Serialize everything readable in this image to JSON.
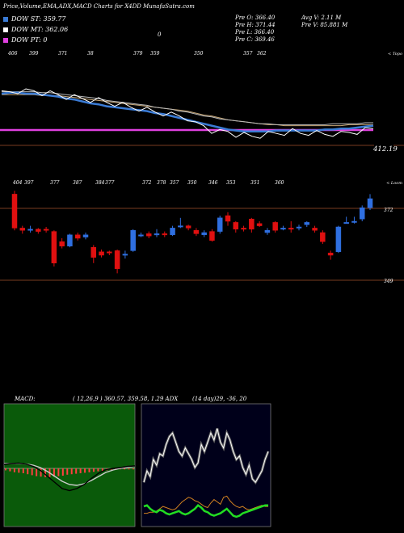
{
  "header": {
    "title": "Price,Volume,EMA,ADX,MACD Charts for X4DD MunafaSutra.com",
    "stats": {
      "open": "Pre O: 366.40",
      "high": "Pre H: 371.44",
      "low": "Pre L: 366.40",
      "close": "Pre C: 369.46",
      "avg_vol": "Avg V: 2.11 M",
      "pre_vol": "Pre V: 85.881 M"
    },
    "small_label": "0"
  },
  "legend": [
    {
      "label": "DOW ST: 359.77",
      "color": "#3a7bd5"
    },
    {
      "label": "DOW MT: 362.06",
      "color": "#ffffff"
    },
    {
      "label": "DOW PT: 0",
      "color": "#e040e0"
    }
  ],
  "ema_panel": {
    "top_labels": [
      "406",
      "399",
      "371",
      "38",
      "379",
      "359",
      "350",
      "357",
      "362"
    ],
    "corner_label": "< Topo",
    "price_label": "412.19",
    "hline_level_label": "412.19"
  },
  "candle_panel": {
    "top_labels": [
      "404",
      "397",
      "377",
      "387",
      "384",
      "377",
      "372",
      "378",
      "357",
      "350",
      "346",
      "353",
      "351",
      "360"
    ],
    "corner_label": "< Loom",
    "upper_level": "372",
    "lower_level": "349"
  },
  "indicators": {
    "macd_label": "MACD:",
    "macd_values": "( 12,26,9 ) 360.57, 359.58, 1.29 ADX",
    "adx_values": "(14 day)29, -36, 20"
  },
  "chart_data": {
    "type": "candlestick",
    "title": "Price,Volume,EMA,ADX,MACD Charts for X4DD MunafaSutra.com",
    "levels": [
      372,
      349
    ],
    "candles": [
      {
        "o": 0.94,
        "c": 0.64,
        "h": 0.97,
        "l": 0.62,
        "up": false
      },
      {
        "o": 0.64,
        "c": 0.62,
        "h": 0.66,
        "l": 0.59,
        "up": false
      },
      {
        "o": 0.63,
        "c": 0.63,
        "h": 0.66,
        "l": 0.6,
        "up": true
      },
      {
        "o": 0.63,
        "c": 0.61,
        "h": 0.64,
        "l": 0.59,
        "up": false
      },
      {
        "o": 0.63,
        "c": 0.62,
        "h": 0.65,
        "l": 0.6,
        "up": false
      },
      {
        "o": 0.61,
        "c": 0.33,
        "h": 0.62,
        "l": 0.3,
        "up": false
      },
      {
        "o": 0.52,
        "c": 0.48,
        "h": 0.55,
        "l": 0.46,
        "up": false
      },
      {
        "o": 0.48,
        "c": 0.58,
        "h": 0.59,
        "l": 0.47,
        "up": true
      },
      {
        "o": 0.58,
        "c": 0.55,
        "h": 0.6,
        "l": 0.53,
        "up": false
      },
      {
        "o": 0.56,
        "c": 0.58,
        "h": 0.6,
        "l": 0.54,
        "up": true
      },
      {
        "o": 0.47,
        "c": 0.38,
        "h": 0.49,
        "l": 0.33,
        "up": false
      },
      {
        "o": 0.43,
        "c": 0.4,
        "h": 0.45,
        "l": 0.38,
        "up": false
      },
      {
        "o": 0.43,
        "c": 0.42,
        "h": 0.44,
        "l": 0.4,
        "up": false
      },
      {
        "o": 0.44,
        "c": 0.28,
        "h": 0.45,
        "l": 0.24,
        "up": false
      },
      {
        "o": 0.4,
        "c": 0.41,
        "h": 0.44,
        "l": 0.37,
        "up": true
      },
      {
        "o": 0.44,
        "c": 0.62,
        "h": 0.63,
        "l": 0.43,
        "up": true
      },
      {
        "o": 0.58,
        "c": 0.58,
        "h": 0.6,
        "l": 0.56,
        "up": true
      },
      {
        "o": 0.59,
        "c": 0.57,
        "h": 0.61,
        "l": 0.55,
        "up": false
      },
      {
        "o": 0.58,
        "c": 0.59,
        "h": 0.63,
        "l": 0.56,
        "up": true
      },
      {
        "o": 0.59,
        "c": 0.58,
        "h": 0.61,
        "l": 0.56,
        "up": false
      },
      {
        "o": 0.58,
        "c": 0.64,
        "h": 0.66,
        "l": 0.57,
        "up": true
      },
      {
        "o": 0.66,
        "c": 0.66,
        "h": 0.73,
        "l": 0.64,
        "up": true
      },
      {
        "o": 0.66,
        "c": 0.64,
        "h": 0.67,
        "l": 0.62,
        "up": false
      },
      {
        "o": 0.62,
        "c": 0.59,
        "h": 0.64,
        "l": 0.57,
        "up": false
      },
      {
        "o": 0.58,
        "c": 0.6,
        "h": 0.62,
        "l": 0.56,
        "up": true
      },
      {
        "o": 0.61,
        "c": 0.53,
        "h": 0.63,
        "l": 0.52,
        "up": false
      },
      {
        "o": 0.61,
        "c": 0.73,
        "h": 0.75,
        "l": 0.59,
        "up": true
      },
      {
        "o": 0.75,
        "c": 0.7,
        "h": 0.78,
        "l": 0.66,
        "up": false
      },
      {
        "o": 0.69,
        "c": 0.63,
        "h": 0.7,
        "l": 0.6,
        "up": false
      },
      {
        "o": 0.64,
        "c": 0.63,
        "h": 0.66,
        "l": 0.61,
        "up": false
      },
      {
        "o": 0.72,
        "c": 0.63,
        "h": 0.73,
        "l": 0.6,
        "up": false
      },
      {
        "o": 0.68,
        "c": 0.66,
        "h": 0.7,
        "l": 0.65,
        "up": false
      },
      {
        "o": 0.6,
        "c": 0.62,
        "h": 0.64,
        "l": 0.58,
        "up": true
      },
      {
        "o": 0.69,
        "c": 0.62,
        "h": 0.7,
        "l": 0.6,
        "up": false
      },
      {
        "o": 0.63,
        "c": 0.64,
        "h": 0.66,
        "l": 0.62,
        "up": true
      },
      {
        "o": 0.64,
        "c": 0.63,
        "h": 0.7,
        "l": 0.6,
        "up": false
      },
      {
        "o": 0.64,
        "c": 0.65,
        "h": 0.67,
        "l": 0.62,
        "up": true
      },
      {
        "o": 0.67,
        "c": 0.69,
        "h": 0.7,
        "l": 0.65,
        "up": true
      },
      {
        "o": 0.64,
        "c": 0.62,
        "h": 0.66,
        "l": 0.6,
        "up": false
      },
      {
        "o": 0.6,
        "c": 0.52,
        "h": 0.62,
        "l": 0.5,
        "up": false
      },
      {
        "o": 0.42,
        "c": 0.4,
        "h": 0.44,
        "l": 0.36,
        "up": false
      },
      {
        "o": 0.43,
        "c": 0.65,
        "h": 0.66,
        "l": 0.42,
        "up": true
      },
      {
        "o": 0.69,
        "c": 0.69,
        "h": 0.74,
        "l": 0.68,
        "up": true
      },
      {
        "o": 0.7,
        "c": 0.7,
        "h": 0.74,
        "l": 0.68,
        "up": true
      },
      {
        "o": 0.72,
        "c": 0.82,
        "h": 0.84,
        "l": 0.7,
        "up": true
      },
      {
        "o": 0.82,
        "c": 0.9,
        "h": 0.94,
        "l": 0.8,
        "up": true
      }
    ],
    "ema_price": [
      0.3,
      0.28,
      0.27,
      0.28,
      0.27,
      0.29,
      0.3,
      0.31,
      0.33,
      0.34,
      0.35,
      0.36,
      0.37,
      0.39,
      0.4,
      0.42,
      0.44,
      0.45,
      0.47,
      0.49,
      0.5,
      0.52,
      0.53,
      0.55,
      0.62,
      0.63,
      0.68,
      0.7,
      0.69,
      0.72,
      0.73,
      0.74,
      0.73,
      0.72,
      0.71,
      0.7,
      0.69,
      0.71,
      0.7,
      0.71,
      0.72,
      0.71,
      0.72,
      0.7,
      0.69,
      0.68,
      0.66
    ],
    "ema_blue": [
      0.3,
      0.29,
      0.29,
      0.3,
      0.3,
      0.31,
      0.32,
      0.33,
      0.35,
      0.36,
      0.38,
      0.4,
      0.41,
      0.43,
      0.44,
      0.45,
      0.46,
      0.47,
      0.48,
      0.5,
      0.51,
      0.53,
      0.55,
      0.57,
      0.59,
      0.61,
      0.63,
      0.65,
      0.67,
      0.68,
      0.69,
      0.69,
      0.69,
      0.69,
      0.68,
      0.68,
      0.68,
      0.68,
      0.68,
      0.68,
      0.67,
      0.67,
      0.66,
      0.66,
      0.65,
      0.64,
      0.63
    ],
    "ema_white": [
      0.28,
      0.28,
      0.28,
      0.28,
      0.28,
      0.29,
      0.29,
      0.3,
      0.31,
      0.32,
      0.33,
      0.34,
      0.35,
      0.37,
      0.38,
      0.39,
      0.4,
      0.41,
      0.42,
      0.44,
      0.45,
      0.46,
      0.48,
      0.49,
      0.51,
      0.53,
      0.54,
      0.56,
      0.57,
      0.58,
      0.59,
      0.6,
      0.61,
      0.61,
      0.62,
      0.62,
      0.62,
      0.62,
      0.62,
      0.62,
      0.62,
      0.61,
      0.61,
      0.61,
      0.61,
      0.6,
      0.6
    ],
    "ema_tan": [
      0.31,
      0.31,
      0.31,
      0.31,
      0.31,
      0.32,
      0.32,
      0.32,
      0.33,
      0.34,
      0.35,
      0.36,
      0.37,
      0.38,
      0.39,
      0.4,
      0.41,
      0.42,
      0.43,
      0.44,
      0.45,
      0.46,
      0.47,
      0.48,
      0.5,
      0.52,
      0.53,
      0.55,
      0.57,
      0.58,
      0.59,
      0.6,
      0.61,
      0.62,
      0.62,
      0.63,
      0.63,
      0.63,
      0.63,
      0.63,
      0.63,
      0.63,
      0.63,
      0.62,
      0.62,
      0.62,
      0.62
    ],
    "macd_line": [
      0.1,
      0.12,
      0.13,
      0.11,
      0.05,
      -0.05,
      -0.2,
      -0.35,
      -0.5,
      -0.55,
      -0.5,
      -0.4,
      -0.25,
      -0.12,
      -0.03,
      0.0,
      0.02,
      0.05,
      0.06
    ],
    "macd_signal": [
      0.12,
      0.12,
      0.12,
      0.11,
      0.08,
      0.02,
      -0.08,
      -0.2,
      -0.32,
      -0.4,
      -0.42,
      -0.38,
      -0.3,
      -0.2,
      -0.1,
      -0.04,
      0.0,
      0.03,
      0.05
    ],
    "macd_hist": [
      0.04,
      0.06,
      0.08,
      0.09,
      0.1,
      0.12,
      0.14,
      0.16,
      0.17,
      0.18,
      0.18,
      0.17,
      0.16,
      0.15,
      0.13,
      0.12,
      0.11,
      0.1,
      0.09,
      0.08,
      0.07,
      0.06,
      0.05,
      0.04,
      0.03,
      0.03,
      0.02,
      0.02,
      0.02,
      0.02
    ],
    "adx_white": [
      0.35,
      0.45,
      0.4,
      0.55,
      0.5,
      0.6,
      0.58,
      0.68,
      0.75,
      0.78,
      0.7,
      0.62,
      0.58,
      0.65,
      0.6,
      0.55,
      0.48,
      0.52,
      0.68,
      0.62,
      0.7,
      0.78,
      0.72,
      0.82,
      0.7,
      0.65,
      0.78,
      0.72,
      0.62,
      0.55,
      0.58,
      0.48,
      0.42,
      0.5,
      0.38,
      0.35,
      0.4,
      0.45,
      0.55,
      0.62
    ],
    "adx_green": [
      0.14,
      0.15,
      0.12,
      0.1,
      0.09,
      0.11,
      0.1,
      0.08,
      0.07,
      0.08,
      0.09,
      0.1,
      0.08,
      0.07,
      0.08,
      0.1,
      0.12,
      0.15,
      0.13,
      0.1,
      0.09,
      0.07,
      0.06,
      0.07,
      0.08,
      0.1,
      0.12,
      0.09,
      0.06,
      0.05,
      0.06,
      0.08,
      0.09,
      0.1,
      0.11,
      0.12,
      0.13,
      0.14,
      0.15,
      0.15
    ],
    "adx_orange": [
      0.08,
      0.08,
      0.09,
      0.09,
      0.1,
      0.12,
      0.14,
      0.13,
      0.12,
      0.11,
      0.12,
      0.15,
      0.18,
      0.2,
      0.22,
      0.21,
      0.19,
      0.18,
      0.16,
      0.14,
      0.13,
      0.17,
      0.2,
      0.18,
      0.16,
      0.22,
      0.23,
      0.19,
      0.16,
      0.14,
      0.13,
      0.14,
      0.12,
      0.11,
      0.12,
      0.13,
      0.14,
      0.15,
      0.14,
      0.14
    ]
  }
}
